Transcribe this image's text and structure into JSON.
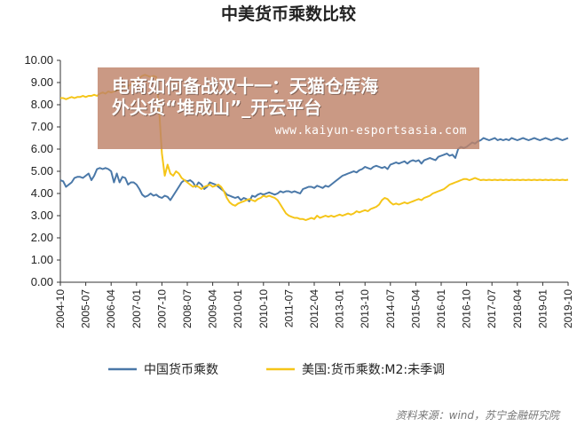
{
  "chart_data": {
    "type": "line",
    "title": "中美货币乘数比较",
    "xlabel": "",
    "ylabel": "",
    "ylim": [
      0,
      10
    ],
    "y_ticks": [
      "0.00",
      "1.00",
      "2.00",
      "3.00",
      "4.00",
      "5.00",
      "6.00",
      "7.00",
      "8.00",
      "9.00",
      "10.00"
    ],
    "x_ticks": [
      "2004-10",
      "2005-07",
      "2006-04",
      "2007-01",
      "2007-10",
      "2008-07",
      "2009-04",
      "2010-01",
      "2010-10",
      "2011-07",
      "2012-04",
      "2013-01",
      "2013-10",
      "2014-07",
      "2015-04",
      "2016-01",
      "2016-10",
      "2017-07",
      "2018-04",
      "2019-01",
      "2019-10"
    ],
    "legend_position": "bottom",
    "grid": false,
    "series": [
      {
        "name": "中国货币乘数",
        "color": "#4a78a8",
        "x": [
          0,
          1,
          2,
          3,
          4,
          5,
          6,
          7,
          8,
          9,
          10,
          11,
          12,
          13,
          14,
          15,
          16,
          17,
          18,
          19,
          20,
          21,
          22,
          23,
          24,
          25,
          26,
          27,
          28,
          29,
          30,
          31,
          32,
          33,
          34,
          35,
          36,
          37,
          38,
          39,
          40,
          41,
          42,
          43,
          44,
          45,
          46,
          47,
          48,
          49,
          50,
          51,
          52,
          53,
          54,
          55,
          56,
          57,
          58,
          59,
          60,
          61,
          62,
          63,
          64,
          65,
          66,
          67,
          68,
          69,
          70,
          71,
          72,
          73,
          74,
          75,
          76,
          77,
          78,
          79,
          80,
          81,
          82,
          83,
          84,
          85,
          86,
          87,
          88,
          89,
          90,
          91,
          92,
          93,
          94,
          95,
          96,
          97,
          98,
          99,
          100,
          101,
          102,
          103,
          104,
          105,
          106,
          107,
          108,
          109,
          110,
          111,
          112,
          113,
          114,
          115,
          116,
          117,
          118,
          119,
          120,
          121,
          122,
          123,
          124,
          125,
          126,
          127,
          128,
          129,
          130,
          131,
          132,
          133,
          134,
          135,
          136,
          137,
          138,
          139,
          140,
          141,
          142,
          143,
          144,
          145,
          146,
          147,
          148,
          149,
          150,
          151,
          152,
          153,
          154,
          155,
          156,
          157,
          158,
          159,
          160,
          161,
          162,
          163,
          164,
          165,
          166,
          167,
          168,
          169,
          170,
          171,
          172,
          173,
          174,
          175,
          176,
          177,
          178,
          179,
          180
        ],
        "values": [
          4.6,
          4.55,
          4.3,
          4.4,
          4.5,
          4.7,
          4.75,
          4.75,
          4.7,
          4.8,
          4.9,
          4.6,
          4.8,
          5.1,
          5.15,
          5.1,
          5.15,
          5.1,
          5.0,
          4.5,
          4.9,
          4.5,
          4.75,
          4.7,
          4.4,
          4.5,
          4.5,
          4.4,
          4.2,
          3.95,
          3.85,
          3.9,
          4.0,
          3.9,
          3.95,
          3.85,
          3.8,
          3.9,
          3.85,
          3.7,
          3.9,
          4.1,
          4.3,
          4.5,
          4.6,
          4.55,
          4.6,
          4.5,
          4.3,
          4.5,
          4.4,
          4.2,
          4.3,
          4.5,
          4.45,
          4.4,
          4.3,
          4.2,
          4.1,
          3.95,
          3.9,
          3.85,
          3.8,
          3.85,
          3.7,
          3.8,
          3.75,
          3.65,
          3.9,
          3.85,
          3.95,
          4.0,
          3.95,
          4.0,
          4.05,
          4.0,
          3.95,
          4.0,
          4.1,
          4.05,
          4.1,
          4.1,
          4.05,
          4.1,
          4.05,
          4.0,
          4.2,
          4.25,
          4.3,
          4.3,
          4.25,
          4.35,
          4.3,
          4.25,
          4.35,
          4.3,
          4.4,
          4.5,
          4.6,
          4.7,
          4.8,
          4.85,
          4.9,
          4.95,
          5.0,
          4.95,
          5.05,
          5.1,
          5.2,
          5.15,
          5.1,
          5.2,
          5.25,
          5.2,
          5.15,
          5.2,
          5.1,
          5.3,
          5.35,
          5.4,
          5.35,
          5.4,
          5.45,
          5.35,
          5.45,
          5.5,
          5.45,
          5.5,
          5.35,
          5.5,
          5.55,
          5.6,
          5.55,
          5.5,
          5.65,
          5.7,
          5.75,
          5.8,
          5.7,
          5.75,
          5.6,
          6.0,
          6.1,
          6.05,
          6.1,
          6.2,
          6.3,
          6.25,
          6.35,
          6.4,
          6.5,
          6.45,
          6.4,
          6.45,
          6.5,
          6.4,
          6.45,
          6.4,
          6.45,
          6.4,
          6.5,
          6.45,
          6.4,
          6.45,
          6.5,
          6.45,
          6.4,
          6.45,
          6.5,
          6.45,
          6.4,
          6.45,
          6.5,
          6.45,
          6.4,
          6.45,
          6.5,
          6.45,
          6.4,
          6.45,
          6.5
        ]
      },
      {
        "name": "美国:货币乘数:M2:未季调",
        "color": "#f5c518",
        "x": [
          0,
          1,
          2,
          3,
          4,
          5,
          6,
          7,
          8,
          9,
          10,
          11,
          12,
          13,
          14,
          15,
          16,
          17,
          18,
          19,
          20,
          21,
          22,
          23,
          24,
          25,
          26,
          27,
          28,
          29,
          30,
          31,
          32,
          33,
          34,
          35,
          36,
          37,
          38,
          39,
          40,
          41,
          42,
          43,
          44,
          45,
          46,
          47,
          48,
          49,
          50,
          51,
          52,
          53,
          54,
          55,
          56,
          57,
          58,
          59,
          60,
          61,
          62,
          63,
          64,
          65,
          66,
          67,
          68,
          69,
          70,
          71,
          72,
          73,
          74,
          75,
          76,
          77,
          78,
          79,
          80,
          81,
          82,
          83,
          84,
          85,
          86,
          87,
          88,
          89,
          90,
          91,
          92,
          93,
          94,
          95,
          96,
          97,
          98,
          99,
          100,
          101,
          102,
          103,
          104,
          105,
          106,
          107,
          108,
          109,
          110,
          111,
          112,
          113,
          114,
          115,
          116,
          117,
          118,
          119,
          120,
          121,
          122,
          123,
          124,
          125,
          126,
          127,
          128,
          129,
          130,
          131,
          132,
          133,
          134,
          135,
          136,
          137,
          138,
          139,
          140,
          141,
          142,
          143,
          144,
          145,
          146,
          147,
          148,
          149,
          150,
          151,
          152,
          153,
          154,
          155,
          156,
          157,
          158,
          159,
          160,
          161,
          162,
          163,
          164,
          165,
          166,
          167,
          168,
          169,
          170,
          171,
          172,
          173,
          174,
          175,
          176,
          177,
          178,
          179,
          180
        ],
        "values": [
          8.3,
          8.3,
          8.25,
          8.3,
          8.35,
          8.3,
          8.35,
          8.35,
          8.4,
          8.35,
          8.4,
          8.4,
          8.45,
          8.4,
          8.5,
          8.55,
          8.5,
          8.6,
          8.55,
          8.6,
          8.65,
          8.7,
          8.75,
          8.8,
          8.85,
          8.9,
          9.0,
          9.1,
          9.2,
          9.3,
          9.35,
          9.3,
          9.25,
          9.3,
          9.25,
          7.8,
          5.8,
          4.8,
          5.3,
          4.9,
          4.8,
          5.0,
          4.9,
          4.7,
          4.6,
          4.5,
          4.4,
          4.3,
          4.35,
          4.3,
          4.2,
          4.3,
          4.35,
          4.4,
          4.3,
          4.35,
          4.4,
          4.3,
          4.1,
          3.8,
          3.6,
          3.5,
          3.45,
          3.55,
          3.6,
          3.65,
          3.7,
          3.75,
          3.7,
          3.65,
          3.75,
          3.8,
          3.9,
          3.85,
          3.9,
          3.85,
          3.8,
          3.7,
          3.5,
          3.3,
          3.1,
          3.0,
          2.95,
          2.9,
          2.9,
          2.85,
          2.85,
          2.8,
          2.85,
          2.9,
          2.85,
          3.0,
          2.9,
          2.95,
          3.0,
          2.95,
          3.0,
          2.95,
          3.0,
          3.05,
          3.0,
          3.05,
          3.1,
          3.05,
          3.1,
          3.2,
          3.15,
          3.2,
          3.25,
          3.2,
          3.3,
          3.35,
          3.4,
          3.5,
          3.7,
          3.8,
          3.75,
          3.6,
          3.5,
          3.55,
          3.5,
          3.55,
          3.6,
          3.55,
          3.6,
          3.65,
          3.7,
          3.75,
          3.7,
          3.8,
          3.85,
          3.9,
          4.0,
          4.05,
          4.1,
          4.15,
          4.2,
          4.3,
          4.4,
          4.45,
          4.5,
          4.55,
          4.6,
          4.65,
          4.65,
          4.6,
          4.65,
          4.7,
          4.65,
          4.6,
          4.62,
          4.6,
          4.62,
          4.6,
          4.62,
          4.6,
          4.62,
          4.6,
          4.62,
          4.6,
          4.62,
          4.6,
          4.62,
          4.6,
          4.62,
          4.6,
          4.62,
          4.6,
          4.62,
          4.6,
          4.62,
          4.6,
          4.62,
          4.6,
          4.62,
          4.6,
          4.62,
          4.6,
          4.62,
          4.6,
          4.62
        ]
      }
    ]
  },
  "overlay": {
    "line1": "电商如何备战双十一：天猫仓库海",
    "line2": "外尖货“堆成山”_开云平台",
    "url": "www.kaiyun-esportsasia.com"
  },
  "source": "资料来源：wind，苏宁金融研究院"
}
